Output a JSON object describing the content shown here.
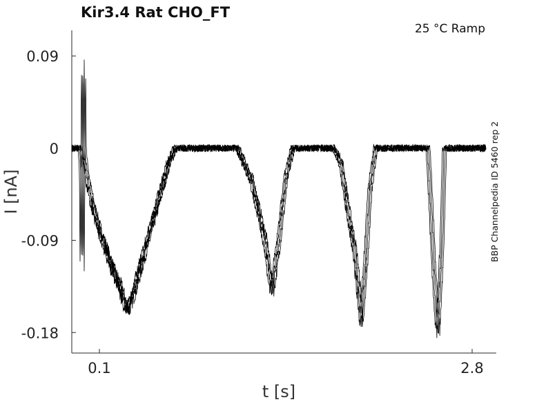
{
  "chart_data": {
    "type": "line",
    "title": "Kir3.4  Rat  CHO_FT",
    "condition": "25 °C  Ramp",
    "side_label": "BBP Channelpedia ID 5460 rep 2",
    "xlabel": "t [s]",
    "ylabel": "I [nA]",
    "xlim": [
      -0.1,
      2.9
    ],
    "ylim": [
      -0.2,
      0.115
    ],
    "x_ticks": [
      0.1,
      2.8
    ],
    "x_tick_labels": [
      "0.1",
      "2.8"
    ],
    "y_ticks": [
      0.09,
      0,
      -0.09,
      -0.18
    ],
    "y_tick_labels": [
      "0.09",
      "0",
      "-0.09",
      "-0.18"
    ],
    "grid": false,
    "series": [
      {
        "color": "#000000",
        "x": [
          -0.1,
          -0.04,
          -0.03,
          -0.025,
          -0.02,
          -0.015,
          -0.01,
          -0.005,
          0.0,
          0.02,
          0.05,
          0.1,
          0.15,
          0.2,
          0.25,
          0.3,
          0.35,
          0.4,
          0.45,
          0.5,
          0.55,
          0.6,
          0.65,
          0.7,
          0.75,
          0.8,
          0.85,
          0.9,
          0.95,
          1.0,
          1.05,
          1.1,
          1.2,
          1.25,
          1.3,
          1.35,
          1.4,
          1.45,
          1.5,
          1.55,
          1.6,
          1.7,
          1.8,
          1.85,
          1.9,
          1.95,
          2.0,
          2.03,
          2.06,
          2.1,
          2.2,
          2.3,
          2.4,
          2.48,
          2.5,
          2.52,
          2.55,
          2.58,
          2.6,
          2.7,
          2.8,
          2.9
        ],
        "y": [
          0.0,
          0.0,
          -0.02,
          -0.115,
          -0.03,
          0.082,
          0.005,
          -0.01,
          -0.015,
          -0.035,
          -0.055,
          -0.08,
          -0.1,
          -0.12,
          -0.135,
          -0.16,
          -0.14,
          -0.115,
          -0.09,
          -0.065,
          -0.04,
          -0.015,
          0.0,
          0.0,
          0.0,
          0.0,
          0.0,
          0.0,
          0.0,
          0.0,
          0.0,
          0.0,
          -0.03,
          -0.06,
          -0.09,
          -0.14,
          -0.09,
          -0.03,
          0.0,
          0.0,
          0.0,
          0.0,
          0.0,
          -0.015,
          -0.06,
          -0.1,
          -0.17,
          -0.11,
          -0.04,
          0.0,
          0.0,
          0.0,
          0.0,
          0.0,
          -0.05,
          -0.11,
          -0.18,
          -0.1,
          0.0,
          0.0,
          0.0,
          0.0
        ]
      }
    ]
  }
}
